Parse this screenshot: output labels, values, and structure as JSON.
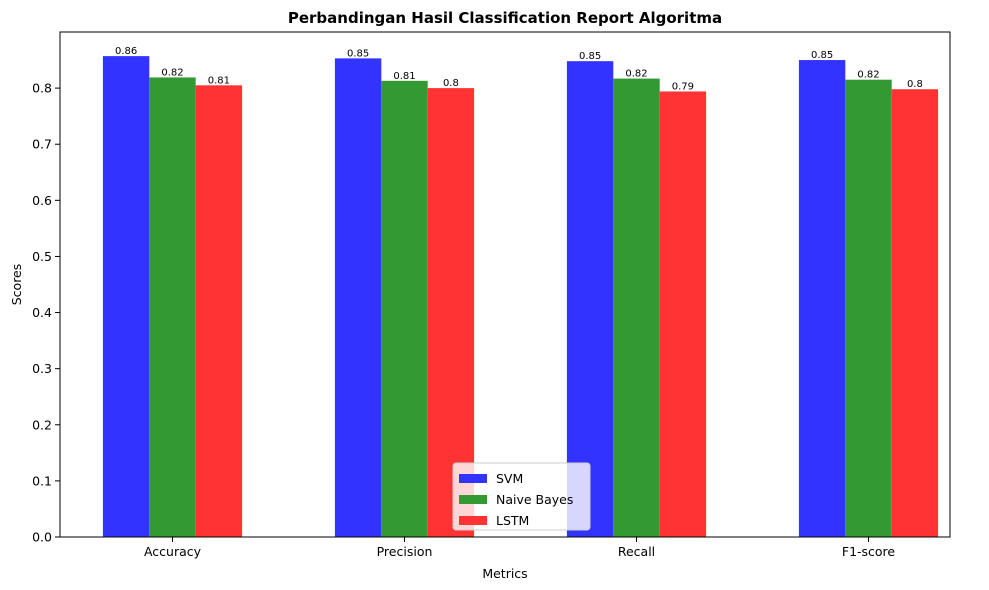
{
  "chart_data": {
    "type": "bar",
    "title": "Perbandingan Hasil Classification Report Algoritma",
    "xlabel": "Metrics",
    "ylabel": "Scores",
    "categories": [
      "Accuracy",
      "Precision",
      "Recall",
      "F1-score"
    ],
    "series": [
      {
        "name": "SVM",
        "color": "#3333ff",
        "values": [
          0.857,
          0.853,
          0.848,
          0.85
        ],
        "labels": [
          "0.86",
          "0.85",
          "0.85",
          "0.85"
        ]
      },
      {
        "name": "Naive Bayes",
        "color": "#339933",
        "values": [
          0.819,
          0.813,
          0.817,
          0.815
        ],
        "labels": [
          "0.82",
          "0.81",
          "0.82",
          "0.82"
        ]
      },
      {
        "name": "LSTM",
        "color": "#ff3333",
        "values": [
          0.805,
          0.8,
          0.794,
          0.798
        ],
        "labels": [
          "0.81",
          "0.8",
          "0.79",
          "0.8"
        ]
      }
    ],
    "ylim": [
      0,
      0.9
    ],
    "yticks": [
      "0.0",
      "0.1",
      "0.2",
      "0.3",
      "0.4",
      "0.5",
      "0.6",
      "0.7",
      "0.8"
    ],
    "legend_position": "bottom-center",
    "grid": false
  }
}
